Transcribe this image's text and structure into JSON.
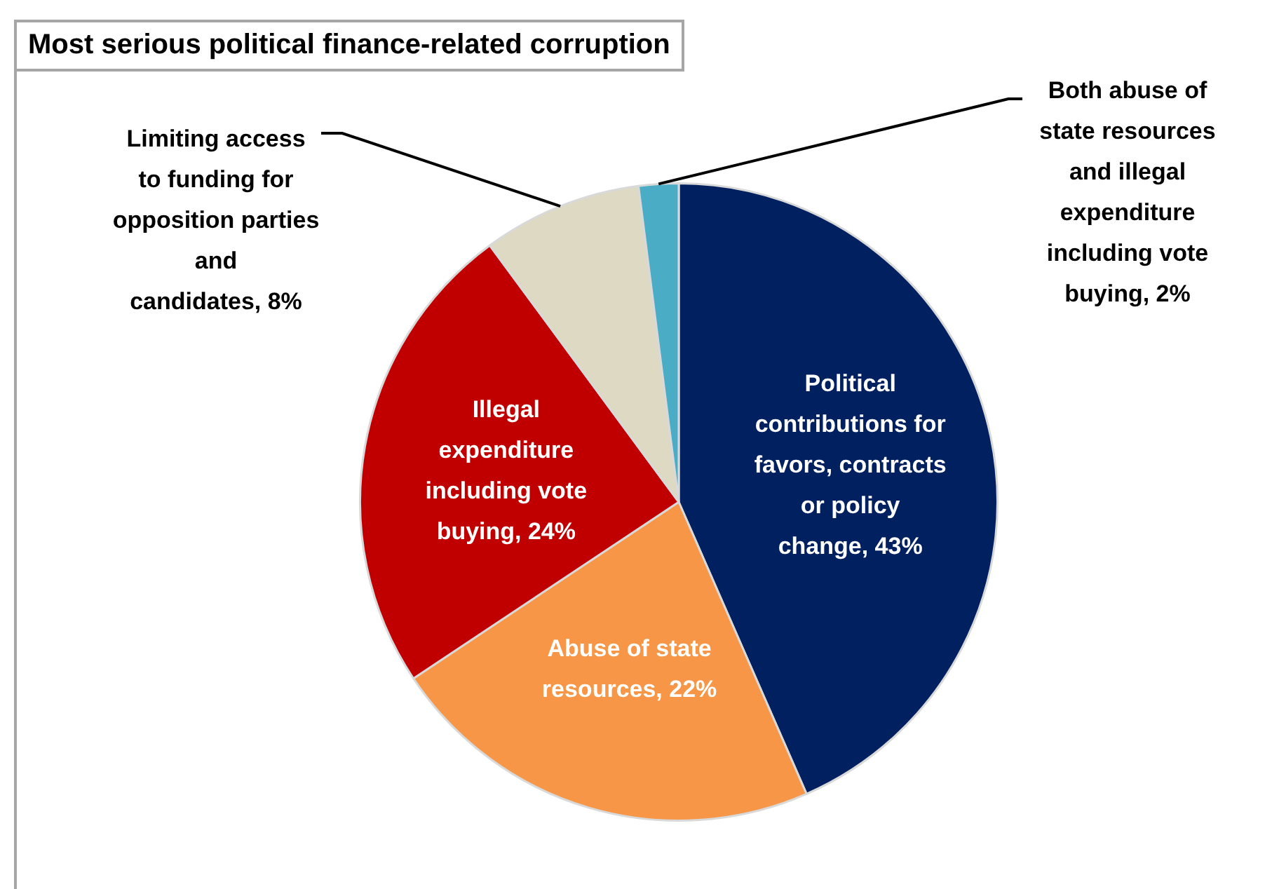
{
  "chart_data": {
    "type": "pie",
    "title": "Most serious political finance-related corruption",
    "categories": [
      "Political contributions for favors, contracts or policy change",
      "Abuse of state resources",
      "Illegal expenditure including vote buying",
      "Limiting access to funding for opposition parties and candidates",
      "Both abuse of state resources and illegal expenditure including vote buying"
    ],
    "values": [
      43,
      22,
      24,
      8,
      2
    ],
    "value_labels": [
      "43%",
      "22%",
      "24%",
      "8%",
      "2%"
    ],
    "colors": [
      "#002060",
      "#f79646",
      "#c00000",
      "#ddd9c3",
      "#4bacc6"
    ],
    "legend": false
  }
}
